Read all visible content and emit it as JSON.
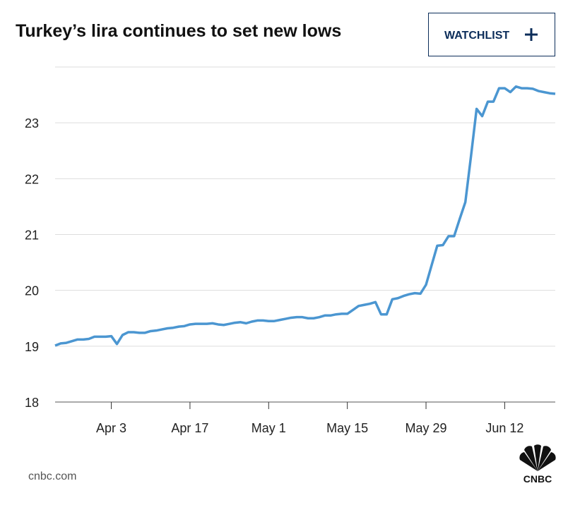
{
  "watchlist_button": "WATCHLIST",
  "source": "cnbc.com",
  "logo_text": "CNBC",
  "chart_data": {
    "type": "line",
    "title": "Turkey’s lira continues to set new lows",
    "categories": [
      null,
      null,
      null,
      null,
      null,
      null,
      null,
      null,
      null,
      null,
      "Apr 3",
      null,
      null,
      null,
      null,
      null,
      null,
      null,
      null,
      null,
      null,
      null,
      null,
      null,
      "Apr 17",
      null,
      null,
      null,
      null,
      null,
      null,
      null,
      null,
      null,
      null,
      null,
      null,
      null,
      "May 1",
      null,
      null,
      null,
      null,
      null,
      null,
      null,
      null,
      null,
      null,
      null,
      null,
      null,
      "May 15",
      null,
      null,
      null,
      null,
      null,
      null,
      null,
      null,
      null,
      null,
      null,
      null,
      null,
      "May 29",
      null,
      null,
      null,
      null,
      null,
      null,
      null,
      null,
      null,
      null,
      null,
      null,
      null,
      "Jun 12",
      null,
      null,
      null,
      null,
      null,
      null,
      null,
      null,
      null
    ],
    "values": [
      19.01,
      19.05,
      19.06,
      19.09,
      19.12,
      19.12,
      19.13,
      19.17,
      19.17,
      19.17,
      19.18,
      19.04,
      19.2,
      19.25,
      19.25,
      19.24,
      19.24,
      19.27,
      19.28,
      19.3,
      19.32,
      19.33,
      19.35,
      19.36,
      19.39,
      19.4,
      19.4,
      19.4,
      19.41,
      19.39,
      19.38,
      19.4,
      19.42,
      19.43,
      19.41,
      19.44,
      19.46,
      19.46,
      19.45,
      19.45,
      19.47,
      19.49,
      19.51,
      19.52,
      19.52,
      19.5,
      19.5,
      19.52,
      19.55,
      19.55,
      19.57,
      19.58,
      19.58,
      19.65,
      19.72,
      19.74,
      19.76,
      19.79,
      19.57,
      19.57,
      19.84,
      19.86,
      19.9,
      19.93,
      19.95,
      19.94,
      20.1,
      20.45,
      20.8,
      20.81,
      20.97,
      20.97,
      21.28,
      21.58,
      22.4,
      23.25,
      23.12,
      23.38,
      23.38,
      23.62,
      23.62,
      23.55,
      23.65,
      23.62,
      23.62,
      23.61,
      23.57,
      23.55,
      23.53,
      23.52
    ],
    "color": "#4b96d1",
    "ylim": [
      18,
      24
    ],
    "yticks": [
      18,
      19,
      20,
      21,
      22,
      23
    ],
    "grid": true
  }
}
